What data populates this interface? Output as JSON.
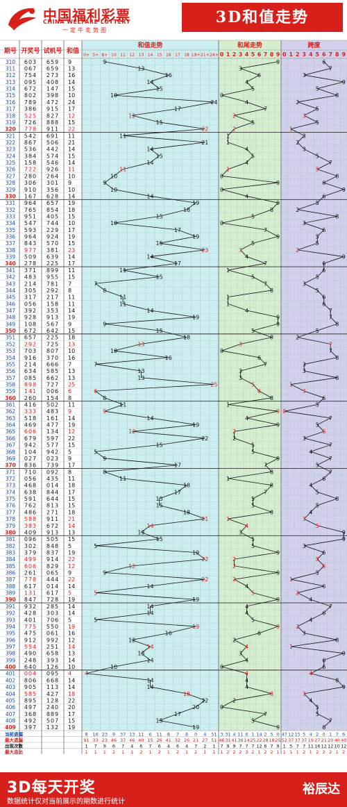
{
  "header": {
    "logo_cn": "中国福利彩票",
    "logo_en": "CHINA WELFARE LOTTERY",
    "logo_sub": "一定牛走势图",
    "title": "3D和值走势"
  },
  "table_headers": {
    "period": "期号",
    "award": "开奖号",
    "test": "试机号",
    "sum": "和值",
    "sum_trend": "和值走势",
    "tail_trend": "和尾走势",
    "span": "跨度"
  },
  "sum_columns": [
    "0+",
    "5+",
    "8+",
    "10",
    "11",
    "12",
    "13",
    "14",
    "15",
    "16",
    "17",
    "18",
    "19+",
    "21+",
    "24+"
  ],
  "tail_columns": [
    "0",
    "1",
    "2",
    "3",
    "4",
    "5",
    "6",
    "7",
    "8",
    "9"
  ],
  "span_columns": [
    "0",
    "1",
    "2",
    "3",
    "4",
    "5",
    "6",
    "7",
    "8",
    "9"
  ],
  "colors": {
    "brand_red": "#d8201b",
    "sum_bg": "#cdeef0",
    "tail_bg": "#d6eecf",
    "span_bg": "#d3d0ec",
    "line": "#111111",
    "highlight": "#d8201b",
    "blue": "#1d36d6"
  },
  "chart_data": {
    "type": "line",
    "title": "3D和值走势",
    "groups": [
      {
        "period_prefix": "31",
        "rows": [
          [
            "310",
            "603",
            "659",
            "9"
          ],
          [
            "311",
            "067",
            "659",
            "13"
          ],
          [
            "312",
            "754",
            "273",
            "16"
          ],
          [
            "313",
            "095",
            "408",
            "14"
          ],
          [
            "314",
            "672",
            "147",
            "15"
          ],
          [
            "315",
            "802",
            "398",
            "10"
          ],
          [
            "316",
            "789",
            "472",
            "24"
          ],
          [
            "317",
            "386",
            "915",
            "17"
          ],
          [
            "318",
            "525",
            "827",
            "12"
          ],
          [
            "319",
            "726",
            "888",
            "15"
          ],
          [
            "320",
            "778",
            "911",
            "22"
          ]
        ]
      },
      {
        "period_prefix": "32",
        "rows": [
          [
            "321",
            "542",
            "691",
            "11"
          ],
          [
            "322",
            "867",
            "506",
            "21"
          ],
          [
            "323",
            "536",
            "442",
            "14"
          ],
          [
            "324",
            "384",
            "574",
            "15"
          ],
          [
            "325",
            "158",
            "546",
            "14"
          ],
          [
            "326",
            "722",
            "926",
            "11"
          ],
          [
            "327",
            "280",
            "264",
            "10"
          ],
          [
            "328",
            "306",
            "301",
            "9"
          ],
          [
            "329",
            "910",
            "356",
            "10"
          ],
          [
            "330",
            "167",
            "628",
            "14"
          ]
        ]
      },
      {
        "period_prefix": "33",
        "rows": [
          [
            "331",
            "964",
            "657",
            "19"
          ],
          [
            "332",
            "765",
            "854",
            "18"
          ],
          [
            "333",
            "951",
            "405",
            "15"
          ],
          [
            "334",
            "547",
            "744",
            "10"
          ],
          [
            "335",
            "593",
            "229",
            "17"
          ],
          [
            "336",
            "964",
            "924",
            "19"
          ],
          [
            "337",
            "843",
            "570",
            "15"
          ],
          [
            "338",
            "977",
            "381",
            "23"
          ],
          [
            "339",
            "509",
            "639",
            "14"
          ],
          [
            "340",
            "278",
            "225",
            "17"
          ]
        ]
      },
      {
        "period_prefix": "34",
        "rows": [
          [
            "341",
            "371",
            "899",
            "11"
          ],
          [
            "342",
            "483",
            "955",
            "15"
          ],
          [
            "343",
            "214",
            "781",
            "7"
          ],
          [
            "344",
            "305",
            "292",
            "8"
          ],
          [
            "345",
            "317",
            "217",
            "11"
          ],
          [
            "346",
            "056",
            "158",
            "11"
          ],
          [
            "347",
            "392",
            "353",
            "14"
          ],
          [
            "348",
            "928",
            "913",
            "19"
          ],
          [
            "349",
            "108",
            "567",
            "9"
          ],
          [
            "350",
            "672",
            "642",
            "15"
          ]
        ]
      },
      {
        "period_prefix": "35",
        "rows": [
          [
            "351",
            "657",
            "225",
            "18"
          ],
          [
            "352",
            "292",
            "725",
            "13"
          ],
          [
            "353",
            "703",
            "807",
            "10"
          ],
          [
            "354",
            "916",
            "370",
            "16"
          ],
          [
            "355",
            "214",
            "666",
            "7"
          ],
          [
            "356",
            "634",
            "585",
            "13"
          ],
          [
            "357",
            "085",
            "662",
            "13"
          ],
          [
            "358",
            "898",
            "727",
            "25"
          ],
          [
            "359",
            "141",
            "006",
            "6"
          ],
          [
            "360",
            "260",
            "154",
            "8"
          ]
        ]
      },
      {
        "period_prefix": "36",
        "rows": [
          [
            "361",
            "416",
            "502",
            "11"
          ],
          [
            "362",
            "333",
            "483",
            "9"
          ],
          [
            "363",
            "518",
            "161",
            "14"
          ],
          [
            "364",
            "469",
            "477",
            "19"
          ],
          [
            "365",
            "606",
            "134",
            "12"
          ],
          [
            "366",
            "679",
            "597",
            "22"
          ],
          [
            "367",
            "942",
            "577",
            "15"
          ],
          [
            "368",
            "104",
            "942",
            "5"
          ],
          [
            "369",
            "027",
            "023",
            "9"
          ],
          [
            "370",
            "836",
            "739",
            "17"
          ]
        ]
      },
      {
        "period_prefix": "37",
        "rows": [
          [
            "371",
            "710",
            "092",
            "8"
          ],
          [
            "372",
            "056",
            "435",
            "11"
          ],
          [
            "373",
            "468",
            "014",
            "18"
          ],
          [
            "374",
            "638",
            "844",
            "17"
          ],
          [
            "375",
            "591",
            "644",
            "15"
          ],
          [
            "376",
            "762",
            "813",
            "15"
          ],
          [
            "377",
            "486",
            "271",
            "18"
          ],
          [
            "378",
            "588",
            "911",
            "21"
          ],
          [
            "379",
            "383",
            "672",
            "14"
          ],
          [
            "380",
            "409",
            "913",
            "13"
          ]
        ]
      },
      {
        "period_prefix": "38",
        "rows": [
          [
            "381",
            "096",
            "505",
            "15"
          ],
          [
            "382",
            "302",
            "848",
            "5"
          ],
          [
            "383",
            "379",
            "837",
            "19"
          ],
          [
            "384",
            "499",
            "914",
            "22"
          ],
          [
            "385",
            "606",
            "829",
            "12"
          ],
          [
            "386",
            "261",
            "065",
            "9"
          ],
          [
            "387",
            "778",
            "444",
            "22"
          ],
          [
            "388",
            "617",
            "014",
            "14"
          ],
          [
            "389",
            "131",
            "617",
            "5"
          ],
          [
            "390",
            "847",
            "728",
            "19"
          ]
        ]
      },
      {
        "period_prefix": "39",
        "rows": [
          [
            "391",
            "932",
            "285",
            "14"
          ],
          [
            "392",
            "428",
            "303",
            "14"
          ],
          [
            "393",
            "401",
            "706",
            "5"
          ],
          [
            "394",
            "775",
            "550",
            "19"
          ],
          [
            "395",
            "475",
            "061",
            "16"
          ],
          [
            "396",
            "912",
            "992",
            "12"
          ],
          [
            "397",
            "554",
            "251",
            "14"
          ],
          [
            "398",
            "490",
            "658",
            "13"
          ],
          [
            "399",
            "248",
            "393",
            "14"
          ],
          [
            "400",
            "640",
            "126",
            "10"
          ]
        ]
      },
      {
        "period_prefix": "40",
        "rows": [
          [
            "401",
            "004",
            "095",
            "4"
          ],
          [
            "402",
            "806",
            "668",
            "14"
          ],
          [
            "403",
            "905",
            "113",
            "14"
          ],
          [
            "404",
            "585",
            "427",
            "18"
          ],
          [
            "405",
            "895",
            "128",
            "22"
          ],
          [
            "406",
            "497",
            "240",
            "20"
          ],
          [
            "407",
            "368",
            "889",
            "17"
          ],
          [
            "408",
            "492",
            "507",
            "15"
          ],
          [
            "409",
            "397",
            "132",
            "19"
          ]
        ]
      }
    ],
    "stats": {
      "labels": [
        "当前遗漏",
        "最大遗漏",
        "出现次数",
        "最大连出"
      ],
      "sum": [
        [
          "8",
          "16",
          "23",
          "9",
          "37",
          "13",
          "11",
          "6",
          "11",
          "8",
          "7",
          "8",
          "0",
          "4",
          "51"
        ],
        [
          "91",
          "33",
          "23",
          "46",
          "37",
          "46",
          "40",
          "15",
          "26",
          "41",
          "32",
          "26",
          "21",
          "27",
          "51"
        ],
        [
          "1",
          "7",
          "9",
          "6",
          "7",
          "4",
          "6",
          "7",
          "6",
          "4",
          "6",
          "4",
          "7",
          "2",
          "1"
        ],
        [
          "1",
          "1",
          "1",
          "2",
          "1",
          "1",
          "2",
          "1",
          "2",
          "1",
          "2",
          "1",
          "2",
          "1",
          "1"
        ]
      ],
      "tail": [
        [
          "3",
          "31",
          "4",
          "11",
          "6",
          "1",
          "14",
          "2",
          "5",
          "0"
        ],
        [
          "46",
          "31",
          "41",
          "36",
          "14",
          "25",
          "22",
          "28",
          "18",
          "25"
        ],
        [
          "7",
          "9",
          "9",
          "7",
          "7",
          "7",
          "12",
          "6",
          "7",
          "9"
        ],
        [
          "1",
          "2",
          "2",
          "2",
          "3",
          "2",
          "1",
          "2",
          "2",
          "1"
        ]
      ],
      "span": [
        [
          "47",
          "12",
          "15",
          "5",
          "4",
          "2",
          "0",
          "1",
          "7",
          "6"
        ],
        [
          "52",
          "37",
          "37",
          "37",
          "19",
          "27",
          "21",
          "20",
          "40",
          "40"
        ],
        [
          "1",
          "5",
          "7",
          "7",
          "11",
          "16",
          "12",
          "12",
          "10",
          "12"
        ],
        [
          "1",
          "1",
          "1",
          "2",
          "1",
          "2",
          "2",
          "2",
          "1",
          "2"
        ]
      ]
    }
  },
  "footer": {
    "title": "3D每天开奖",
    "note": "数据统计仅对当前展示的期数进行统计",
    "brand": "裕辰达"
  }
}
